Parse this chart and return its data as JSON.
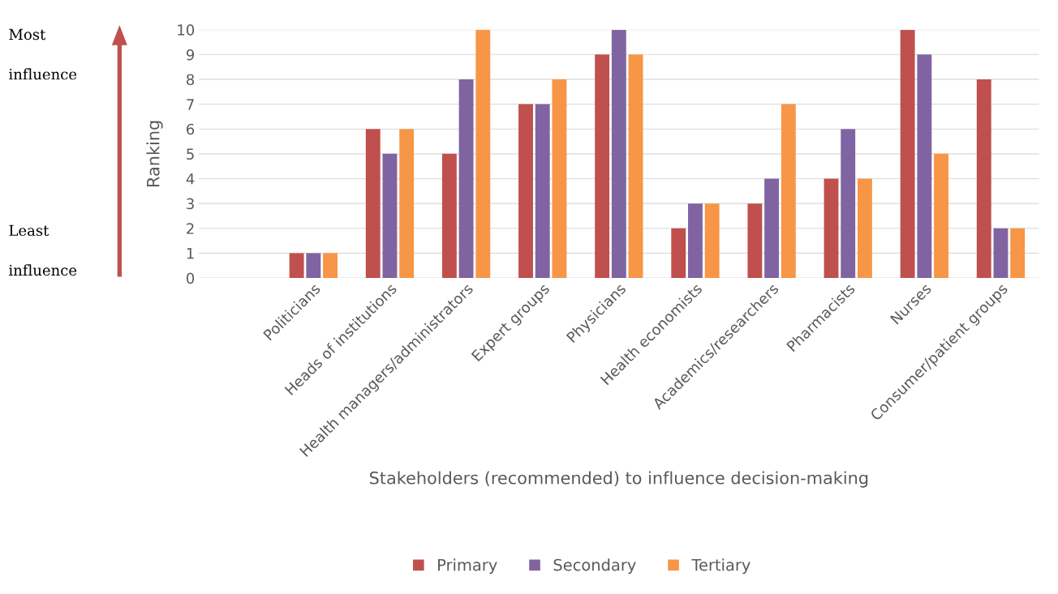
{
  "chart_data": {
    "type": "bar",
    "xlabel": "Stakeholders (recommended) to influence decision-making",
    "ylabel": "Ranking",
    "categories": [
      null,
      "Politicians",
      "Heads of institutions",
      "Health managers/administrators",
      "Expert groups",
      "Physicians",
      "Health economists",
      "Academics/researchers",
      "Pharmacists",
      "Nurses",
      "Consumer/patient groups"
    ],
    "series": [
      {
        "name": "Primary",
        "color": "#c0504d",
        "values": [
          null,
          1,
          6,
          5,
          7,
          9,
          2,
          3,
          4,
          10,
          8
        ]
      },
      {
        "name": "Secondary",
        "color": "#8064a2",
        "values": [
          null,
          1,
          5,
          8,
          7,
          10,
          3,
          4,
          6,
          9,
          2
        ]
      },
      {
        "name": "Tertiary",
        "color": "#f79646",
        "values": [
          null,
          1,
          6,
          10,
          8,
          9,
          3,
          7,
          4,
          5,
          2
        ]
      }
    ],
    "ylim": [
      0,
      10
    ],
    "yticks": [
      0,
      1,
      2,
      3,
      4,
      5,
      6,
      7,
      8,
      9,
      10
    ],
    "grid": "y",
    "legend": "bottom",
    "annotations": [
      "Most influence",
      "Least influence"
    ]
  }
}
